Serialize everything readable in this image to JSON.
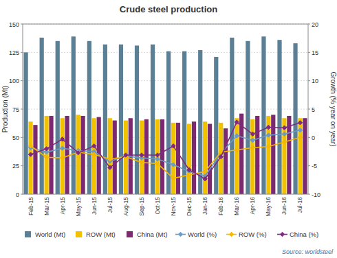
{
  "chart_data": {
    "type": "bar",
    "title": "Crude steel production",
    "y_label": "Production (Mt)",
    "y2_label": "Growth (% year on year)",
    "source": "Source: worldsteel",
    "categories": [
      "Feb-15",
      "Mar-15",
      "Apr-15",
      "May-15",
      "Jun-15",
      "Jul-15",
      "Aug-15",
      "Sep-15",
      "Oct-15",
      "Nov-15",
      "Dec-15",
      "Jan-16",
      "Feb-16",
      "Mar-16",
      "Apr-16",
      "May-16",
      "Jun-16",
      "Jul-16"
    ],
    "ylim": [
      0,
      150
    ],
    "yticks": [
      0,
      25,
      50,
      75,
      100,
      125,
      150
    ],
    "y2lim": [
      -10,
      20
    ],
    "y2ticks": [
      -10,
      -5,
      0,
      5,
      10,
      15,
      20
    ],
    "grid": true,
    "legend": "bottom",
    "series": [
      {
        "name": "World (Mt)",
        "type": "bar",
        "color": "#5b7f95",
        "values": [
          125,
          138,
          135,
          139,
          135,
          132,
          132,
          131,
          132,
          126,
          126,
          127,
          121,
          138,
          135,
          139,
          136,
          133
        ]
      },
      {
        "name": "ROW (Mt)",
        "type": "bar",
        "color": "#f2c200",
        "values": [
          64,
          69,
          67,
          70,
          67,
          67,
          65,
          65,
          66,
          63,
          62,
          64,
          63,
          67,
          66,
          69,
          67,
          67
        ]
      },
      {
        "name": "China (Mt)",
        "type": "bar",
        "color": "#7b2a6f",
        "values": [
          61,
          69,
          69,
          69,
          68,
          65,
          67,
          66,
          66,
          63,
          64,
          62,
          58,
          71,
          69,
          70,
          69,
          67
        ]
      },
      {
        "name": "World (%)",
        "type": "line",
        "axis": "y2",
        "color": "#6d9bc3",
        "marker": "diamond",
        "values": [
          -1.8,
          -2.6,
          -1.9,
          -2.3,
          -2.5,
          -4.2,
          -3.3,
          -3.6,
          -3.8,
          -4.8,
          -6.0,
          -6.8,
          -2.8,
          0.3,
          -0.5,
          0.4,
          0.6,
          1.3
        ]
      },
      {
        "name": "ROW (%)",
        "type": "line",
        "axis": "y2",
        "color": "#f5b800",
        "marker": "diamond",
        "values": [
          -1.5,
          -3.5,
          -3.6,
          -2.6,
          -3.0,
          -3.8,
          -3.4,
          -4.4,
          -4.6,
          -7.2,
          -6.6,
          -6.0,
          -2.6,
          -2.2,
          -1.8,
          -1.6,
          -0.8,
          0.0
        ]
      },
      {
        "name": "China (%)",
        "type": "line",
        "axis": "y2",
        "color": "#7f2b82",
        "marker": "diamond",
        "values": [
          -3.0,
          -2.0,
          -0.3,
          -2.7,
          -1.5,
          -5.3,
          -3.1,
          -3.1,
          -3.1,
          -1.5,
          -5.7,
          -7.3,
          -3.4,
          2.7,
          0.6,
          1.8,
          1.7,
          2.6
        ]
      }
    ]
  }
}
